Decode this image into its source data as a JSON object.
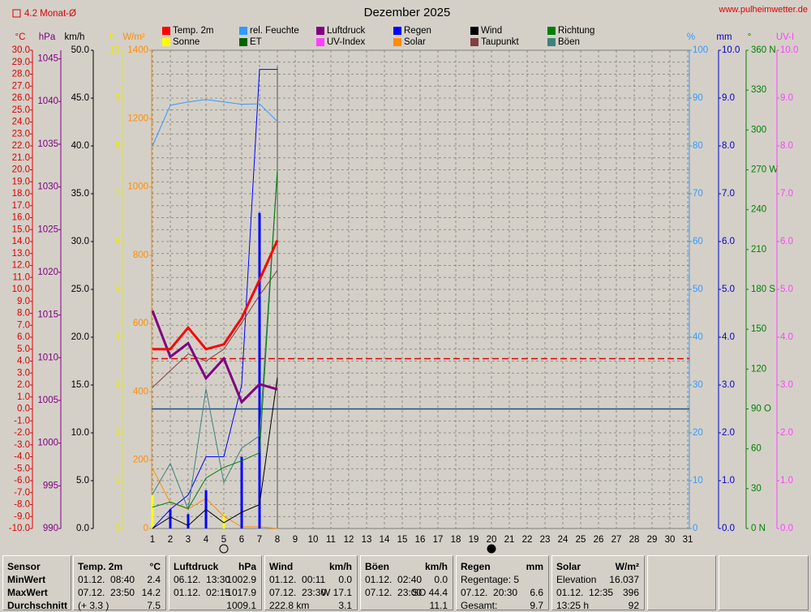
{
  "chart_data": {
    "type": "line",
    "title": "Dezember 2025",
    "site": "www.pulheimwetter.de",
    "average_note": "4.2 Monat-Ø",
    "x": [
      1,
      2,
      3,
      4,
      5,
      6,
      7,
      8
    ],
    "xlim": [
      1,
      31
    ],
    "xticks": [
      1,
      2,
      3,
      4,
      5,
      6,
      7,
      8,
      9,
      10,
      11,
      12,
      13,
      14,
      15,
      16,
      17,
      18,
      19,
      20,
      21,
      22,
      23,
      24,
      25,
      26,
      27,
      28,
      29,
      30,
      31
    ],
    "grid": true,
    "current_day": 8,
    "moon_phases": [
      {
        "day": 5,
        "phase": "full"
      },
      {
        "day": 20,
        "phase": "new"
      }
    ],
    "axes": [
      {
        "unit": "°C",
        "color": "#e00000",
        "lim": [
          -10,
          30
        ],
        "ticks": [
          {
            "value": -10,
            "label": "-10.0"
          },
          {
            "value": -9,
            "label": "-9.0"
          },
          {
            "value": -8,
            "label": "-8.0"
          },
          {
            "value": -7,
            "label": "-7.0"
          },
          {
            "value": -6,
            "label": "-6.0"
          },
          {
            "value": -5,
            "label": "-5.0"
          },
          {
            "value": -4,
            "label": "-4.0"
          },
          {
            "value": -3,
            "label": "-3.0"
          },
          {
            "value": -2,
            "label": "-2.0"
          },
          {
            "value": -1,
            "label": "-1.0"
          },
          {
            "value": 0,
            "label": "0.0"
          },
          {
            "value": 1,
            "label": "1.0"
          },
          {
            "value": 2,
            "label": "2.0"
          },
          {
            "value": 3,
            "label": "3.0"
          },
          {
            "value": 4,
            "label": "4.0"
          },
          {
            "value": 5,
            "label": "5.0"
          },
          {
            "value": 6,
            "label": "6.0"
          },
          {
            "value": 7,
            "label": "7.0"
          },
          {
            "value": 8,
            "label": "8.0"
          },
          {
            "value": 9,
            "label": "9.0"
          },
          {
            "value": 10,
            "label": "10.0"
          },
          {
            "value": 11,
            "label": "11.0"
          },
          {
            "value": 12,
            "label": "12.0"
          },
          {
            "value": 13,
            "label": "13.0"
          },
          {
            "value": 14,
            "label": "14.0"
          },
          {
            "value": 15,
            "label": "15.0"
          },
          {
            "value": 16,
            "label": "16.0"
          },
          {
            "value": 17,
            "label": "17.0"
          },
          {
            "value": 18,
            "label": "18.0"
          },
          {
            "value": 19,
            "label": "19.0"
          },
          {
            "value": 20,
            "label": "20.0"
          },
          {
            "value": 21,
            "label": "21.0"
          },
          {
            "value": 22,
            "label": "22.0"
          },
          {
            "value": 23,
            "label": "23.0"
          },
          {
            "value": 24,
            "label": "24.0"
          },
          {
            "value": 25,
            "label": "25.0"
          },
          {
            "value": 26,
            "label": "26.0"
          },
          {
            "value": 27,
            "label": "27.0"
          },
          {
            "value": 28,
            "label": "28.0"
          },
          {
            "value": 29,
            "label": "29.0"
          },
          {
            "value": 30,
            "label": "30.0"
          }
        ]
      },
      {
        "unit": "hPa",
        "color": "#800080",
        "lim": [
          990,
          1046
        ],
        "ticks": [
          990,
          995,
          1000,
          1005,
          1010,
          1015,
          1020,
          1025,
          1030,
          1035,
          1040,
          1045
        ]
      },
      {
        "unit": "km/h",
        "color": "#000000",
        "lim": [
          0,
          50
        ],
        "ticks": [
          {
            "value": 0,
            "label": "0.0"
          },
          {
            "value": 5,
            "label": "5.0"
          },
          {
            "value": 10,
            "label": "10.0"
          },
          {
            "value": 15,
            "label": "15.0"
          },
          {
            "value": 20,
            "label": "20.0"
          },
          {
            "value": 25,
            "label": "25.0"
          },
          {
            "value": 30,
            "label": "30.0"
          },
          {
            "value": 35,
            "label": "35.0"
          },
          {
            "value": 40,
            "label": "40.0"
          },
          {
            "value": 45,
            "label": "45.0"
          },
          {
            "value": 50,
            "label": "50.0"
          }
        ]
      },
      {
        "unit": "h",
        "color": "#e8e800",
        "lim": [
          0,
          10
        ],
        "ticks": [
          0,
          1,
          2,
          3,
          4,
          5,
          6,
          7,
          8,
          9,
          10
        ]
      },
      {
        "unit": "W/m²",
        "color": "#ff8c00",
        "lim": [
          0,
          1400
        ],
        "ticks": [
          0,
          200,
          400,
          600,
          800,
          1000,
          1200,
          1400
        ]
      },
      {
        "unit": "%",
        "color": "#3399ff",
        "lim": [
          0,
          100
        ],
        "ticks": [
          0,
          10,
          20,
          30,
          40,
          50,
          60,
          70,
          80,
          90,
          100
        ]
      },
      {
        "unit": "mm",
        "color": "#0000cc",
        "lim": [
          0,
          10
        ],
        "ticks": [
          {
            "value": 0,
            "label": "0.0"
          },
          {
            "value": 1,
            "label": "1.0"
          },
          {
            "value": 2,
            "label": "2.0"
          },
          {
            "value": 3,
            "label": "3.0"
          },
          {
            "value": 4,
            "label": "4.0"
          },
          {
            "value": 5,
            "label": "5.0"
          },
          {
            "value": 6,
            "label": "6.0"
          },
          {
            "value": 7,
            "label": "7.0"
          },
          {
            "value": 8,
            "label": "8.0"
          },
          {
            "value": 9,
            "label": "9.0"
          },
          {
            "value": 10,
            "label": "10.0"
          }
        ]
      },
      {
        "unit": "°",
        "color": "#008000",
        "lim": [
          0,
          360
        ],
        "ticks": [
          {
            "value": 0,
            "label": "0  N"
          },
          30,
          60,
          {
            "value": 90,
            "label": "90  O"
          },
          120,
          150,
          {
            "value": 180,
            "label": "180  S"
          },
          210,
          240,
          {
            "value": 270,
            "label": "270  W"
          },
          300,
          330,
          {
            "value": 360,
            "label": "360  N"
          }
        ]
      },
      {
        "unit": "UV-I",
        "color": "#ff40ff",
        "lim": [
          0,
          10
        ],
        "ticks": [
          {
            "value": 0,
            "label": "0.0"
          },
          {
            "value": 1,
            "label": "1.0"
          },
          {
            "value": 2,
            "label": "2.0"
          },
          {
            "value": 3,
            "label": "3.0"
          },
          {
            "value": 4,
            "label": "4.0"
          },
          {
            "value": 5,
            "label": "5.0"
          },
          {
            "value": 6,
            "label": "6.0"
          },
          {
            "value": 7,
            "label": "7.0"
          },
          {
            "value": 8,
            "label": "8.0"
          },
          {
            "value": 9,
            "label": "9.0"
          },
          {
            "value": 10,
            "label": "10.0"
          }
        ]
      }
    ],
    "reference_lines": [
      {
        "axis": 0,
        "value": 4.2,
        "color": "#e00000",
        "dashed": true
      },
      {
        "axis": 0,
        "value": 0,
        "color": "#1c4f8c",
        "dashed": false
      }
    ],
    "series": [
      {
        "name": "Temp. 2m",
        "color": "#ff0000",
        "axis": 0,
        "width": 3,
        "values": [
          5.0,
          5.0,
          6.8,
          5.0,
          5.4,
          7.6,
          10.8,
          14.1
        ]
      },
      {
        "name": "rel. Feuchte",
        "color": "#3399ff",
        "axis": 5,
        "width": 1,
        "values": [
          80,
          88.5,
          89.2,
          89.7,
          89.2,
          88.7,
          88.8,
          85.1
        ]
      },
      {
        "name": "Luftdruck",
        "color": "#800080",
        "axis": 1,
        "width": 3,
        "values": [
          1015.5,
          1010.1,
          1011.7,
          1007.6,
          1009.9,
          1004.8,
          1006.9,
          1006.3
        ]
      },
      {
        "name": "Regen",
        "color": "#0000ff",
        "axis": 6,
        "width": 1,
        "values": [
          0,
          0.4,
          0.7,
          1.5,
          1.5,
          3.0,
          9.6,
          9.6
        ],
        "bars": [
          0,
          0.4,
          0.3,
          0.8,
          0,
          1.5,
          6.6,
          0
        ]
      },
      {
        "name": "Wind",
        "color": "#000000",
        "axis": 2,
        "width": 1,
        "values": [
          0,
          1.2,
          0.3,
          2.0,
          0.6,
          1.7,
          2.5,
          15.8
        ]
      },
      {
        "name": "Richtung",
        "color": "#008000",
        "axis": 7,
        "width": 1,
        "values": [
          16,
          20,
          15,
          38,
          46,
          51,
          57,
          270
        ]
      },
      {
        "name": "Sonne",
        "color": "#ffff00",
        "axis": 3,
        "kind": "bar",
        "values": [
          0.7,
          0,
          0,
          0.2,
          0.3,
          0,
          0,
          0
        ]
      },
      {
        "name": "ET",
        "color": "#006400",
        "axis": 6,
        "width": 1,
        "values": [
          null,
          null,
          null,
          null,
          null,
          null,
          null,
          null
        ]
      },
      {
        "name": "UV-Index",
        "color": "#ff40ff",
        "axis": 8,
        "width": 1,
        "values": [
          null,
          null,
          null,
          null,
          null,
          null,
          null,
          null
        ]
      },
      {
        "name": "Solar",
        "color": "#ff8c00",
        "axis": 4,
        "width": 1,
        "values": [
          176,
          76,
          57,
          88,
          36,
          5,
          5,
          0
        ]
      },
      {
        "name": "Taupunkt",
        "color": "#804040",
        "axis": 0,
        "width": 1,
        "values": [
          1.8,
          3.2,
          4.6,
          4.0,
          5.0,
          7.2,
          9.5,
          11.6
        ]
      },
      {
        "name": "Böen",
        "color": "#408080",
        "axis": 2,
        "width": 1,
        "values": [
          3.6,
          6.8,
          2.0,
          14.6,
          4.8,
          8.4,
          9.7,
          37.5
        ]
      }
    ]
  },
  "table": {
    "sensor_header": "Sensor",
    "row_labels": [
      "MinWert",
      "MaxWert",
      "Durchschnitt"
    ],
    "panels": [
      {
        "name": "Temp. 2m",
        "unit": "°C",
        "rows": [
          {
            "left": "01.12.  08:40",
            "right": "2.4"
          },
          {
            "left": "07.12.  23:50",
            "right": "14.2"
          },
          {
            "left": "(+ 3.3 )",
            "right": "7.5"
          }
        ]
      },
      {
        "name": "Luftdruck",
        "unit": "hPa",
        "rows": [
          {
            "left": "06.12.  13:30",
            "right": "1002.9"
          },
          {
            "left": "01.12.  02:15",
            "right": "1017.9"
          },
          {
            "right": "1009.1"
          }
        ]
      },
      {
        "name": "Wind",
        "unit": "km/h",
        "rows": [
          {
            "left": "01.12.  00:11",
            "right": "0.0"
          },
          {
            "left": "07.12.  23:30",
            "right": "W 17.1"
          },
          {
            "left": "222.8 km",
            "right": "3.1"
          }
        ]
      },
      {
        "name": "Böen",
        "unit": "km/h",
        "rows": [
          {
            "left": "01.12.  02:40",
            "right": "0.0"
          },
          {
            "left": "07.12.  23:00",
            "right": "SO 44.4"
          },
          {
            "right": "11.1"
          }
        ]
      },
      {
        "name": "Regen",
        "unit": "mm",
        "rows": [
          {
            "left": "Regentage: 5"
          },
          {
            "left": "07.12.  20:30",
            "right": "6.6"
          },
          {
            "left": "Gesamt:",
            "right": "9.7"
          }
        ]
      },
      {
        "name": "Solar",
        "unit": "W/m²",
        "rows": [
          {
            "left": "Elevation",
            "right": "16.037"
          },
          {
            "left": "01.12.  12:35",
            "right": "396"
          },
          {
            "left": "13:25 h",
            "right": "92"
          }
        ]
      }
    ]
  }
}
